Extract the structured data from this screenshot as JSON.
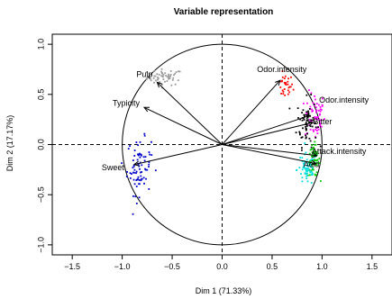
{
  "chart_data": {
    "type": "scatter",
    "title": "Variable representation",
    "xlabel": "Dim 1 (71.33%)",
    "ylabel": "Dim 2 (17.17%)",
    "xlim": [
      -1.7,
      1.7
    ],
    "ylim": [
      -1.1,
      1.1
    ],
    "x_ticks": [
      -1.5,
      -1.0,
      -0.5,
      0.0,
      0.5,
      1.0,
      1.5
    ],
    "x_tick_labels": [
      "−1.5",
      "−1.0",
      "−0.5",
      "0.0",
      "0.5",
      "1.0",
      "1.5"
    ],
    "y_ticks": [
      -1.0,
      -0.5,
      0.0,
      0.5,
      1.0
    ],
    "y_tick_labels": [
      "−1.0",
      "−0.5",
      "0.0",
      "0.5",
      "1.0"
    ],
    "circle_radius": 1.0,
    "arrow_color": "#000000",
    "variables": [
      {
        "label": "Odor.intensity",
        "x": 0.58,
        "y": 0.64
      },
      {
        "label": "Pulp",
        "x": -0.65,
        "y": 0.62
      },
      {
        "label": "Typicity",
        "x": -0.78,
        "y": 0.37
      },
      {
        "label": "Odor.intensity",
        "x": 0.88,
        "y": 0.29
      },
      {
        "label": "Bitter",
        "x": 0.91,
        "y": 0.22
      },
      {
        "label": "Sweet",
        "x": -0.88,
        "y": -0.2
      },
      {
        "label": "Attack.intensity",
        "x": 0.95,
        "y": -0.11
      },
      {
        "label": "Acid",
        "x": 0.94,
        "y": -0.19
      }
    ],
    "point_clouds": [
      {
        "color": "#999999",
        "cx": -0.57,
        "cy": 0.67,
        "sx": 0.09,
        "sy": 0.04,
        "n": 55
      },
      {
        "color": "#ff0000",
        "cx": 0.63,
        "cy": 0.58,
        "sx": 0.04,
        "sy": 0.06,
        "n": 30
      },
      {
        "color": "#ff00ff",
        "cx": 0.93,
        "cy": 0.28,
        "sx": 0.05,
        "sy": 0.12,
        "n": 60
      },
      {
        "color": "#000000",
        "cx": 0.85,
        "cy": 0.22,
        "sx": 0.05,
        "sy": 0.12,
        "n": 65
      },
      {
        "color": "#0000cc",
        "cx": -0.83,
        "cy": -0.22,
        "sx": 0.06,
        "sy": 0.14,
        "n": 80
      },
      {
        "color": "#00cc00",
        "cx": 0.92,
        "cy": -0.16,
        "sx": 0.03,
        "sy": 0.08,
        "n": 60
      },
      {
        "color": "#00dddd",
        "cx": 0.85,
        "cy": -0.25,
        "sx": 0.05,
        "sy": 0.08,
        "n": 60
      }
    ]
  }
}
